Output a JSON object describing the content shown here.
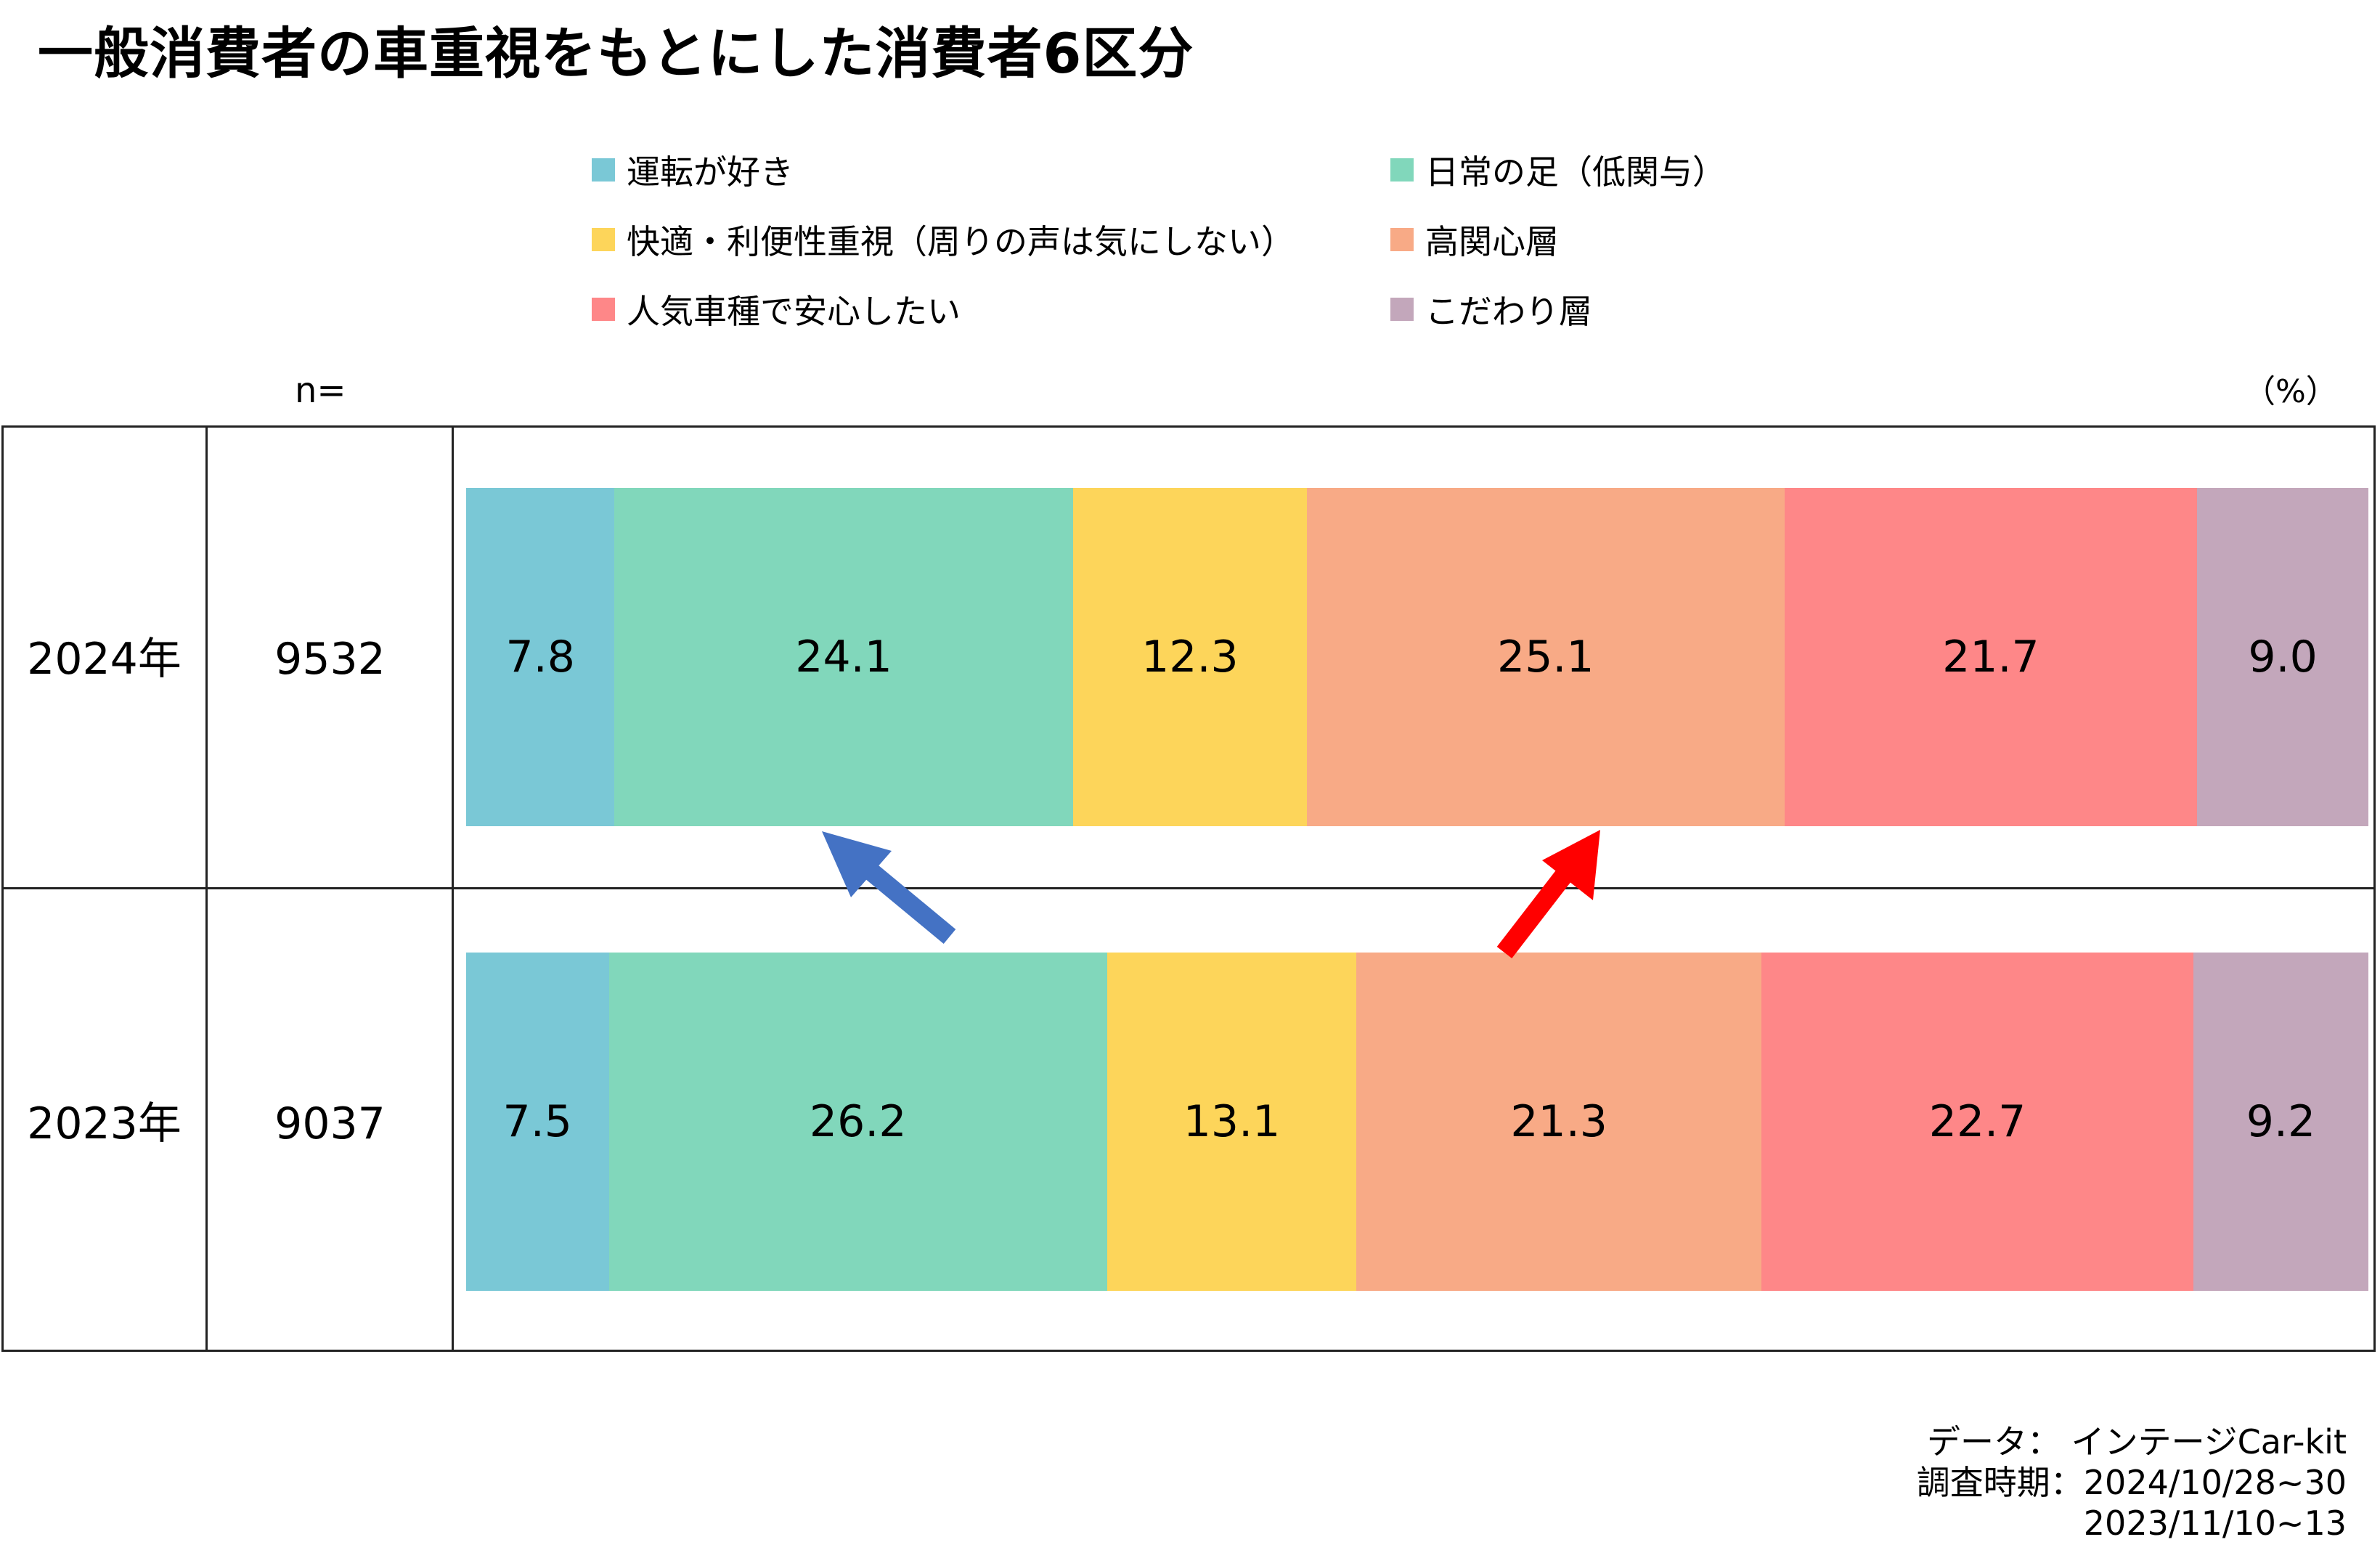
{
  "chart_data": {
    "type": "bar",
    "orientation": "horizontal",
    "stacked": true,
    "title": "一般消費者の車重視をもとにした消費者6区分",
    "n_label": "n=",
    "unit_label": "（%）",
    "xlim": [
      0,
      100
    ],
    "legend": {
      "placement": "top",
      "items": [
        {
          "name": "運転が好き",
          "color": "#7AC8D6"
        },
        {
          "name": "日常の足（低関与）",
          "color": "#81D7BB"
        },
        {
          "name": "快適・利便性重視（周りの声は気にしない）",
          "color": "#FDD55A"
        },
        {
          "name": "高関心層",
          "color": "#F8AA86"
        },
        {
          "name": "人気車種で安心したい",
          "color": "#FE8788"
        },
        {
          "name": "こだわり層",
          "color": "#C3A7BB"
        }
      ]
    },
    "categories": [
      "2024年",
      "2023年"
    ],
    "n": [
      "9532",
      "9037"
    ],
    "series": [
      {
        "name": "運転が好き",
        "values": [
          7.8,
          7.5
        ],
        "labels": [
          "7.8",
          "7.5"
        ]
      },
      {
        "name": "日常の足（低関与）",
        "values": [
          24.1,
          26.2
        ],
        "labels": [
          "24.1",
          "26.2"
        ]
      },
      {
        "name": "快適・利便性重視（周りの声は気にしない）",
        "values": [
          12.3,
          13.1
        ],
        "labels": [
          "12.3",
          "13.1"
        ]
      },
      {
        "name": "高関心層",
        "values": [
          25.1,
          21.3
        ],
        "labels": [
          "25.1",
          "21.3"
        ]
      },
      {
        "name": "人気車種で安心したい",
        "values": [
          21.7,
          22.7
        ],
        "labels": [
          "21.7",
          "22.7"
        ]
      },
      {
        "name": "こだわり層",
        "values": [
          9.0,
          9.2
        ],
        "labels": [
          "9.0",
          "9.2"
        ]
      }
    ],
    "annotations": [
      {
        "type": "arrow",
        "color": "#4472C4",
        "meaning": "日常の足（低関与） decreased from 2023 to 2024"
      },
      {
        "type": "arrow",
        "color": "#FF0000",
        "meaning": "高関心層 increased from 2023 to 2024"
      }
    ]
  },
  "footer": {
    "line1": "データ： インテージCar-kit",
    "line2": "調査時期：2024/10/28~30",
    "line3": "2023/11/10~13"
  }
}
